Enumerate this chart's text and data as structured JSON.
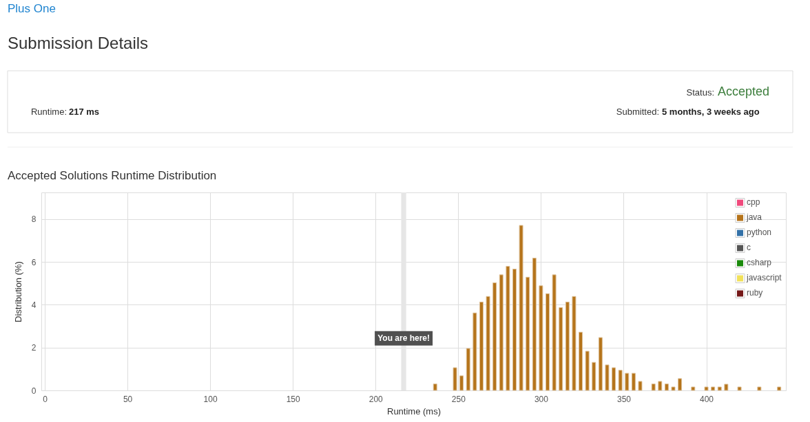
{
  "chart_data": {
    "type": "bar",
    "title": "Accepted Solutions Runtime Distribution",
    "xlabel": "Runtime (ms)",
    "ylabel": "Distribution (%)",
    "series": [
      {
        "name": "cpp",
        "color": "#f04a7c"
      },
      {
        "name": "java",
        "color": "#b5741b",
        "x": [
          236,
          248,
          252,
          256,
          260,
          264,
          268,
          272,
          276,
          280,
          284,
          288,
          292,
          296,
          300,
          304,
          308,
          312,
          316,
          320,
          324,
          328,
          332,
          336,
          340,
          344,
          348,
          352,
          356,
          360,
          368,
          372,
          376,
          380,
          384,
          392,
          400,
          404,
          408,
          412,
          420,
          432,
          444
        ],
        "values": [
          0.3,
          1.06,
          0.68,
          1.96,
          3.62,
          4.13,
          4.39,
          5.03,
          5.4,
          5.8,
          5.67,
          7.71,
          5.29,
          6.18,
          4.89,
          4.52,
          5.4,
          3.87,
          4.13,
          4.39,
          2.72,
          1.83,
          1.31,
          2.47,
          1.19,
          1.06,
          0.94,
          0.8,
          0.8,
          0.42,
          0.3,
          0.42,
          0.3,
          0.16,
          0.55,
          0.16,
          0.16,
          0.16,
          0.16,
          0.29,
          0.16,
          0.16,
          0.16
        ]
      },
      {
        "name": "python",
        "color": "#3371a8"
      },
      {
        "name": "c",
        "color": "#555555"
      },
      {
        "name": "csharp",
        "color": "#1a8a0c"
      },
      {
        "name": "javascript",
        "color": "#f1e15b"
      },
      {
        "name": "ruby",
        "color": "#751818"
      }
    ],
    "xlim": [
      0,
      446
    ],
    "ylim": [
      0,
      9.25
    ],
    "xticks": [
      0,
      50,
      100,
      150,
      200,
      250,
      300,
      350,
      400
    ],
    "yticks": [
      0,
      2,
      4,
      6,
      8
    ],
    "grid": true,
    "legend": "top right",
    "bands": [
      {
        "axis": "x",
        "from": 215.5,
        "to": 218.5,
        "color": "#e6e6e6"
      }
    ],
    "annotations": [
      "Plus One",
      "Submission Details",
      "Status:",
      "Accepted",
      "Runtime:",
      "217 ms",
      "Submitted:",
      "5 months, 3 weeks ago",
      {
        "text": "You are here!",
        "x": 217,
        "y": 2
      }
    ]
  }
}
